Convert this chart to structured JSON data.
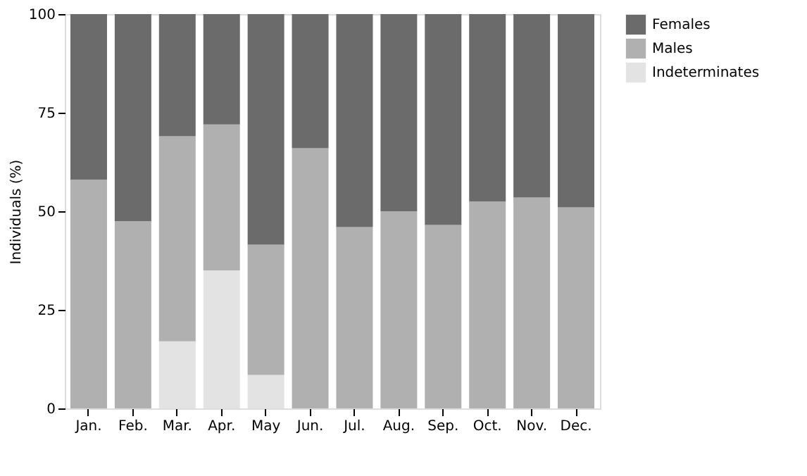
{
  "chart_data": {
    "type": "bar",
    "stacked": true,
    "ylabel": "Individuals (%)",
    "categories": [
      "Jan.",
      "Feb.",
      "Mar.",
      "Apr.",
      "May",
      "Jun.",
      "Jul.",
      "Aug.",
      "Sep.",
      "Oct.",
      "Nov.",
      "Dec."
    ],
    "series": [
      {
        "name": "Indeterminates",
        "color": "#e3e3e3",
        "values": [
          null,
          null,
          17,
          35,
          8.5,
          null,
          null,
          null,
          null,
          null,
          null,
          null
        ]
      },
      {
        "name": "Males",
        "color": "#b0b0b0",
        "values": [
          58,
          47.5,
          52,
          37,
          33,
          66,
          46,
          50,
          46.5,
          52.5,
          53.5,
          51
        ]
      },
      {
        "name": "Females",
        "color": "#6b6b6b",
        "values": [
          42,
          52.5,
          31,
          28,
          58.5,
          34,
          54,
          50,
          53.5,
          47.5,
          46.5,
          49
        ]
      }
    ],
    "ylim": [
      0,
      100
    ],
    "yticks": [
      0,
      25,
      50,
      75,
      100
    ],
    "grid": false,
    "legend": "right"
  }
}
